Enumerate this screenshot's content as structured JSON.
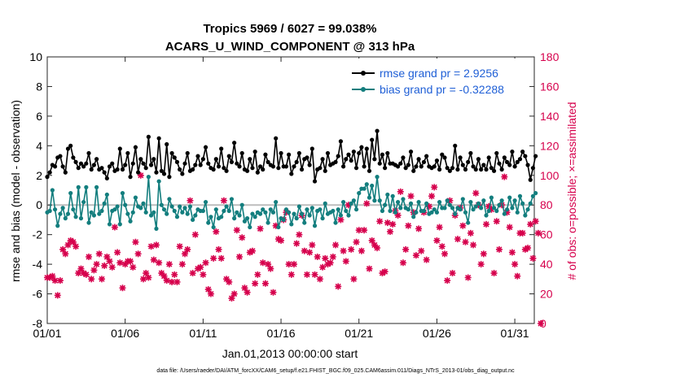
{
  "chart_data": {
    "type": "line",
    "title": "Tropics 5969 / 6027 = 99.038%",
    "subtitle": "ACARS_U_WIND_COMPONENT @ 313 hPa",
    "xlabel": "Jan.01,2013 00:00:00 start",
    "ylabel": "rmse and bias (model - observation)",
    "ylabel_right": "# of obs: o=possible; ×=assimilated",
    "xlim": [
      0,
      31.25
    ],
    "ylim": [
      -8,
      10
    ],
    "ylim_right": [
      0,
      180
    ],
    "x_ticks": [
      0,
      5,
      10,
      15,
      20,
      25,
      30
    ],
    "x_tick_labels": [
      "01/01",
      "01/06",
      "01/11",
      "01/16",
      "01/21",
      "01/26",
      "01/31"
    ],
    "y_ticks": [
      -8,
      -6,
      -4,
      -2,
      0,
      2,
      4,
      6,
      8,
      10
    ],
    "y_ticks_right": [
      0,
      20,
      40,
      60,
      80,
      100,
      120,
      140,
      160,
      180
    ],
    "footnote": "data file: /Users/raeder/DAI/ATM_forcXX/CAM6_setup/f.e21.FHIST_BGC.f09_025.CAM6assim.011/Diags_NTrS_2013-01/obs_diag_output.nc",
    "series": [
      {
        "name": "rmse grand pr = 2.9256",
        "color": "#000000",
        "values": [
          1.9,
          2.2,
          2.7,
          2.6,
          3.2,
          3.3,
          2.6,
          2.2,
          3.8,
          4,
          3.2,
          2.9,
          2.5,
          2.8,
          2.6,
          2.8,
          3.5,
          2.4,
          2.7,
          3.1,
          2.4,
          2.5,
          2.2,
          1.8,
          2.6,
          2.8,
          2.3,
          2.4,
          3.8,
          2.4,
          2.7,
          3.5,
          1.9,
          2.8,
          3.9,
          2.2,
          3.1,
          2.8,
          2.5,
          4.6,
          2.7,
          3.1,
          2.2,
          4.5,
          2.3,
          2.1,
          4.1,
          1.9,
          3.5,
          3.2,
          2.9,
          2.4,
          2.1,
          2.8,
          3.5,
          2.3,
          2.4,
          2.7,
          3.3,
          2.7,
          3.1,
          3.9,
          2.8,
          2.5,
          2.4,
          3.1,
          2.6,
          3.8,
          2.5,
          2.3,
          3.3,
          2.9,
          4.2,
          2.8,
          2.6,
          3.5,
          2.4,
          2.3,
          3.1,
          2.5,
          3.6,
          2.2,
          2.6,
          2.4,
          3.4,
          2.9,
          2.7,
          2.6,
          4.5,
          2.5,
          3.5,
          2.6,
          2.6,
          3.4,
          2.1,
          2.6,
          2.9,
          3.5,
          2.4,
          3.1,
          3.2,
          2.7,
          3.8,
          1.6,
          2.4,
          2.5,
          3.1,
          2.3,
          3.5,
          2.7,
          2.8,
          2.9,
          3.3,
          4.3,
          2.6,
          3.1,
          3.4,
          3,
          3.6,
          2.5,
          3.5,
          3.9,
          2.6,
          3.8,
          2.3,
          4.4,
          3.1,
          5,
          2.8,
          3.4,
          2.5,
          3.5,
          2.8,
          2.8,
          2.7,
          2.6,
          2.8,
          3.2,
          2.5,
          2.7,
          3.6,
          2.3,
          2.6,
          3.1,
          2.6,
          2.9,
          3.3,
          2.6,
          2.5,
          2.6,
          3,
          2.4,
          3.4,
          3.2,
          2.5,
          2.3,
          2.5,
          4,
          2.4,
          3.2,
          2.7,
          2.4,
          2.9,
          3.5,
          2.6,
          2.4,
          3.1,
          2.4,
          2.7,
          2.4,
          3.2,
          2.5,
          2.3,
          3.5,
          2.8,
          2.4,
          3.2,
          2.9,
          2.7,
          3.6,
          2.6,
          2.9,
          3.1,
          3.6,
          3.3,
          2.7,
          1.7,
          2.5,
          3.3
        ],
        "x_start": 0,
        "x_step": 0.16667
      },
      {
        "name": "bias grand pr = -0.32288",
        "color": "#137e7e",
        "values": [
          -0.5,
          -0.4,
          1,
          -0.3,
          -1.4,
          -0.6,
          -0.2,
          -0.9,
          -0.6,
          0.8,
          -0.3,
          -0.8,
          1.2,
          -0.9,
          0.2,
          1.2,
          -1.2,
          -0.5,
          -0.7,
          1.2,
          -0.6,
          -0.4,
          0.1,
          0.7,
          -1.3,
          -0.4,
          -0.3,
          -0.1,
          -1.3,
          0.8,
          0,
          -0.6,
          -1.1,
          -0.5,
          0.5,
          -0.1,
          -0.2,
          0.1,
          -0.5,
          1.9,
          -0.7,
          -0.5,
          -1.6,
          1.6,
          0,
          -0.3,
          -0.6,
          0.4,
          -0.1,
          -0.4,
          -0.8,
          -0.1,
          -0.5,
          -0.2,
          -0.6,
          -0.1,
          -1,
          -0.7,
          -0.3,
          -0.4,
          -0.4,
          0.2,
          -1.2,
          -0.8,
          -1.5,
          -0.3,
          -0.9,
          -0.8,
          -0.4,
          -0.1,
          -0.4,
          0.4,
          -0.9,
          -0.5,
          -0.7,
          0,
          -1.1,
          -0.9,
          -1.5,
          -0.6,
          -0.8,
          -0.5,
          -0.6,
          -0.3,
          -0.5,
          -1.2,
          -0.3,
          -0.5,
          0.2,
          -1.5,
          -0.9,
          -1,
          -0.3,
          -0.5,
          -1.3,
          -0.6,
          -0.9,
          -0.1,
          -0.6,
          -1.2,
          -0.3,
          -0.7,
          -0.2,
          -1.4,
          -0.4,
          -0.3,
          -0.9,
          0.1,
          -0.6,
          -0.5,
          -0.4,
          -1.2,
          -0.3,
          -0.7,
          0.2,
          -0.4,
          -0.7,
          0.1,
          0.3,
          -0.3,
          0.8,
          1.1,
          1.1,
          1.4,
          0.5,
          1.3,
          0.3,
          1.9,
          0.3,
          -0.4,
          0,
          0.7,
          -0.4,
          0.6,
          -0.5,
          0.2,
          -0.2,
          0.4,
          -0.2,
          -0.3,
          0.1,
          -0.8,
          -0.5,
          0.2,
          -0.4,
          -0.4,
          0.1,
          -0.6,
          -0.5,
          -0.3,
          -0.5,
          0.2,
          -0.2,
          -0.2,
          0.3,
          0,
          -0.2,
          -0.6,
          -0.2,
          -0.3,
          0.4,
          -0.5,
          -1.2,
          0.2,
          -0.3,
          -0.1,
          0.1,
          -0.2,
          0.3,
          -0.7,
          -0.4,
          0.5,
          -0.2,
          -0.4,
          0,
          0.3,
          -0.6,
          -0.3,
          0.5,
          -0.2,
          0.3,
          -0.5,
          0.6,
          0.1,
          -0.7,
          -0.3,
          0.1,
          0.6,
          0.8
        ],
        "x_start": 0,
        "x_step": 0.16667
      }
    ],
    "obs_counts": {
      "axis": "right",
      "color": "#d6004c",
      "legend": "o=possible; ×=assimilated",
      "x_start": 0,
      "x_step": 0.16667,
      "values": [
        31,
        31,
        32,
        29,
        19,
        29,
        50,
        47,
        53,
        56,
        55,
        52,
        34,
        37,
        34,
        33,
        45,
        30,
        36,
        40,
        47,
        30,
        39,
        45,
        42,
        38,
        65,
        48,
        41,
        24,
        40,
        42,
        42,
        38,
        55,
        47,
        100,
        30,
        34,
        31,
        52,
        43,
        53,
        41,
        34,
        32,
        29,
        40,
        28,
        33,
        28,
        52,
        40,
        47,
        50,
        83,
        34,
        60,
        37,
        38,
        33,
        41,
        23,
        20,
        44,
        62,
        50,
        44,
        83,
        30,
        28,
        17,
        20,
        63,
        45,
        58,
        24,
        21,
        48,
        49,
        27,
        33,
        64,
        41,
        27,
        40,
        37,
        21,
        66,
        57,
        56,
        70,
        75,
        40,
        33,
        40,
        54,
        60,
        73,
        49,
        33,
        48,
        53,
        33,
        45,
        30,
        38,
        44,
        40,
        41,
        45,
        53,
        25,
        70,
        49,
        42,
        80,
        50,
        30,
        55,
        63,
        49,
        63,
        81,
        37,
        56,
        53,
        51,
        69,
        34,
        35,
        68,
        62,
        67,
        76,
        73,
        89,
        41,
        50,
        66,
        86,
        75,
        46,
        64,
        49,
        75,
        43,
        79,
        86,
        92,
        56,
        65,
        52,
        47,
        29,
        83,
        34,
        73,
        57,
        78,
        66,
        55,
        31,
        61,
        53,
        88,
        80,
        40,
        47,
        67,
        79,
        77,
        34,
        69,
        50,
        80,
        99,
        75,
        65,
        48,
        40,
        32,
        61,
        61,
        50,
        51,
        67,
        44,
        69,
        61,
        0
      ]
    }
  }
}
